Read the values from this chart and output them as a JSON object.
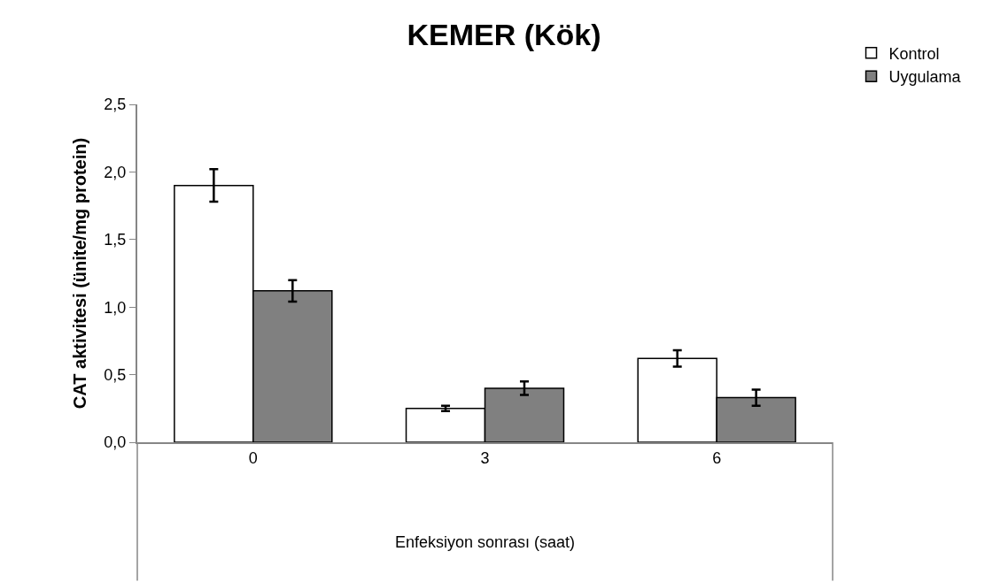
{
  "chart_data": {
    "type": "bar",
    "title": "KEMER (Kök)",
    "xlabel": "Enfeksiyon sonrası (saat)",
    "ylabel": "CAT aktivitesi (ünite/mg protein)",
    "categories": [
      "0",
      "3",
      "6"
    ],
    "series": [
      {
        "name": "Kontrol",
        "color": "#ffffff",
        "values": [
          1.9,
          0.25,
          0.62
        ],
        "errors": [
          0.12,
          0.02,
          0.06
        ]
      },
      {
        "name": "Uygulama",
        "color": "#808080",
        "values": [
          1.12,
          0.4,
          0.33
        ],
        "errors": [
          0.08,
          0.05,
          0.06
        ]
      }
    ],
    "ylim": [
      0,
      2.5
    ],
    "yticks": [
      {
        "value": 0,
        "label": "0,0"
      },
      {
        "value": 0.5,
        "label": "0,5"
      },
      {
        "value": 1,
        "label": "1,0"
      },
      {
        "value": 1.5,
        "label": "1,5"
      },
      {
        "value": 2,
        "label": "2,0"
      },
      {
        "value": 2.5,
        "label": "2,5"
      }
    ],
    "grid": false,
    "legend": "top right"
  }
}
